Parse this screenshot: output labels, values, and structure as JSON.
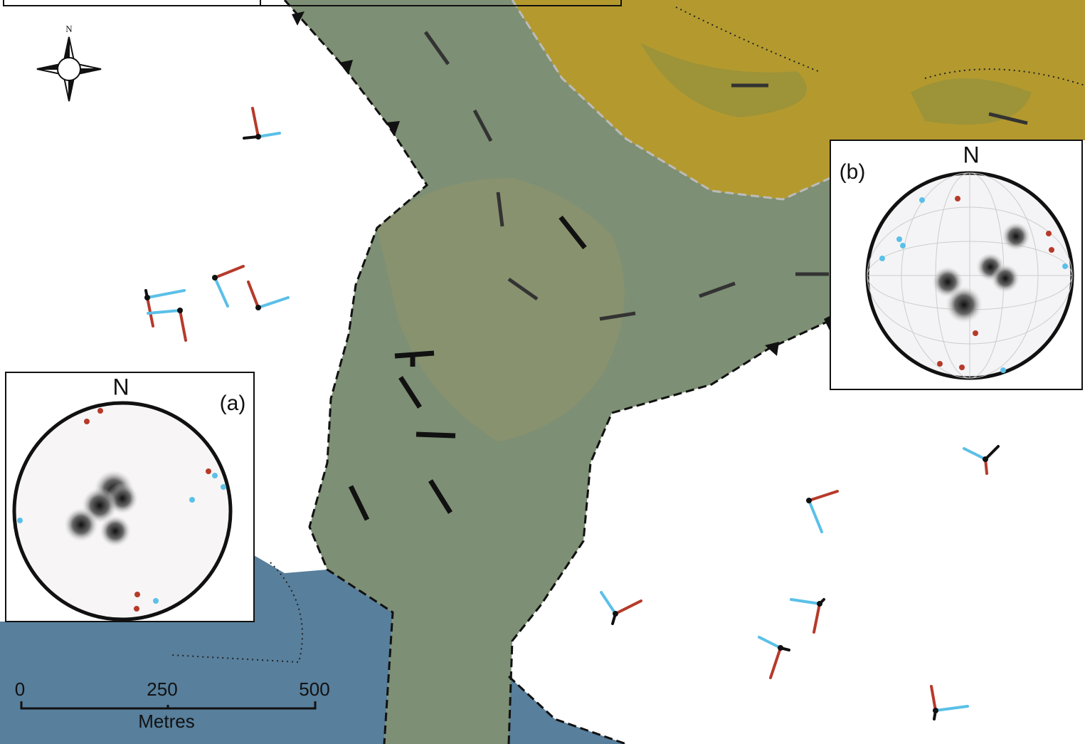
{
  "compass": {
    "label": "N"
  },
  "inset_a": {
    "label": "(a)",
    "north": "N"
  },
  "inset_b": {
    "label": "(b)",
    "north": "N"
  },
  "scale_bar": {
    "ticks": [
      0,
      250,
      500
    ],
    "unit": "Metres"
  }
}
